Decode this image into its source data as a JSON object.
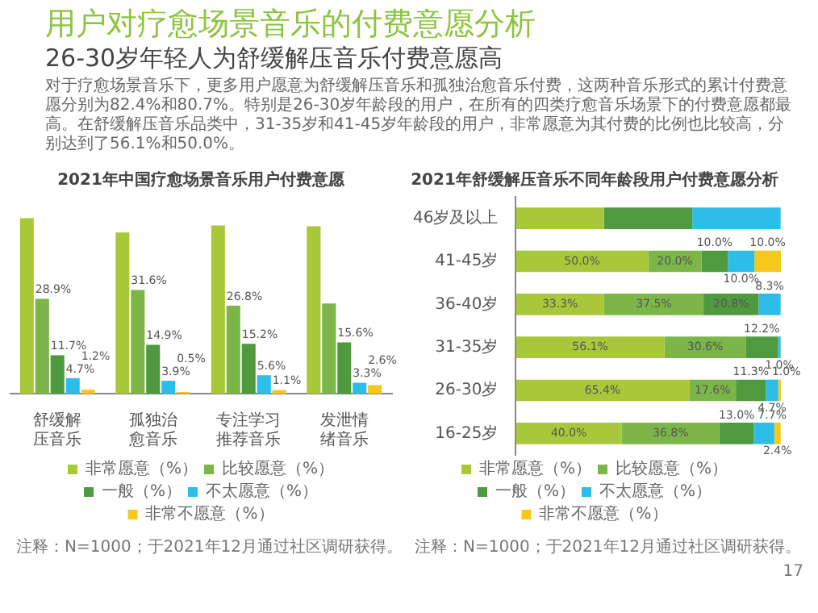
{
  "chart_data": [
    {
      "type": "bar",
      "title": "2021年中国疗愈场景音乐用户付费意愿",
      "categories": [
        "舒缓解压音乐",
        "孤独治愈音乐",
        "专注学习推荐音乐",
        "发泄情绪音乐"
      ],
      "series": [
        {
          "name": "非常愿意（%）",
          "color": "#a8c83a",
          "values": [
            53.5,
            49.1,
            51.3,
            51.0
          ],
          "value_labels": [
            null,
            null,
            null,
            null
          ]
        },
        {
          "name": "比较愿意（%）",
          "color": "#7cb649",
          "values": [
            28.9,
            31.6,
            26.8,
            27.5
          ],
          "value_labels": [
            "28.9%",
            "31.6%",
            "26.8%",
            null
          ]
        },
        {
          "name": "一般（%）",
          "color": "#4f9a3f",
          "values": [
            11.7,
            14.9,
            15.2,
            15.6
          ],
          "value_labels": [
            "11.7%",
            "14.9%",
            "15.2%",
            "15.6%"
          ]
        },
        {
          "name": "不太愿意（%）",
          "color": "#2cbde9",
          "values": [
            4.7,
            3.9,
            5.6,
            3.3
          ],
          "value_labels": [
            "4.7%",
            "3.9%",
            "5.6%",
            "3.3%"
          ]
        },
        {
          "name": "非常不愿意（%）",
          "color": "#f6c81c",
          "values": [
            1.2,
            0.5,
            1.1,
            2.6
          ],
          "value_labels": [
            "1.2%",
            "0.5%",
            "1.1%",
            "2.6%"
          ]
        }
      ],
      "legend": "bottom",
      "grid": false,
      "annotations": [
        "用户对疗愈场景音乐的付费意愿分析",
        "26-30岁年轻人为舒缓解压音乐付费意愿高",
        "对于疗愈场景音乐下，更多用户愿意为舒缓解压音乐和孤独治愈音乐付费，这两种音乐形式的累计付费意愿分别为82.4%和80.7%。特别是26-30岁年龄段的用户，在所有的四类疗愈音乐场景下的付费意愿都最高。在舒缓解压音乐品类中，31-35岁和41-45岁年龄段的用户，非常愿意为其付费的比例也比较高，分别达到了56.1%和50.0%。",
        "注释：N=1000；于2021年12月通过社区调研获得。"
      ]
    },
    {
      "type": "bar",
      "orientation": "horizontal",
      "stacked": true,
      "title": "2021年舒缓解压音乐不同年龄段用户付费意愿分析",
      "categories": [
        "46岁及以上",
        "41-45岁",
        "36-40岁",
        "31-35岁",
        "26-30岁",
        "16-25岁"
      ],
      "series": [
        {
          "name": "非常愿意（%）",
          "color": "#a8c83a",
          "values": [
            33.3,
            50.0,
            33.3,
            56.1,
            65.4,
            40.0
          ],
          "value_labels": [
            null,
            "50.0%",
            "33.3%",
            "56.1%",
            "65.4%",
            "40.0%"
          ]
        },
        {
          "name": "比较愿意（%）",
          "color": "#7cb649",
          "values": [
            null,
            20.0,
            37.5,
            30.6,
            17.6,
            36.8
          ],
          "value_labels": [
            null,
            "20.0%",
            "37.5%",
            "30.6%",
            "17.6%",
            "36.8%"
          ]
        },
        {
          "name": "一般（%）",
          "color": "#4f9a3f",
          "values": [
            33.3,
            10.0,
            20.8,
            12.2,
            11.3,
            13.0
          ],
          "value_labels": [
            null,
            "10.0%",
            "20.8%",
            "12.2%",
            "11.3%",
            "13.0%"
          ]
        },
        {
          "name": "不太愿意（%）",
          "color": "#2cbde9",
          "values": [
            33.3,
            10.0,
            8.3,
            1.0,
            4.7,
            7.7
          ],
          "value_labels": [
            null,
            "10.0%",
            "8.3%",
            "1.0%",
            "4.7%",
            "7.7%"
          ]
        },
        {
          "name": "非常不愿意（%）",
          "color": "#f6c81c",
          "values": [
            null,
            10.0,
            null,
            null,
            1.0,
            2.4
          ],
          "value_labels": [
            null,
            "10.0%",
            null,
            null,
            "1.0%",
            "2.4%"
          ]
        }
      ],
      "legend": "bottom",
      "grid": false,
      "annotations": [
        "注释：N=1000；于2021年12月通过社区调研获得。",
        "17"
      ]
    }
  ]
}
